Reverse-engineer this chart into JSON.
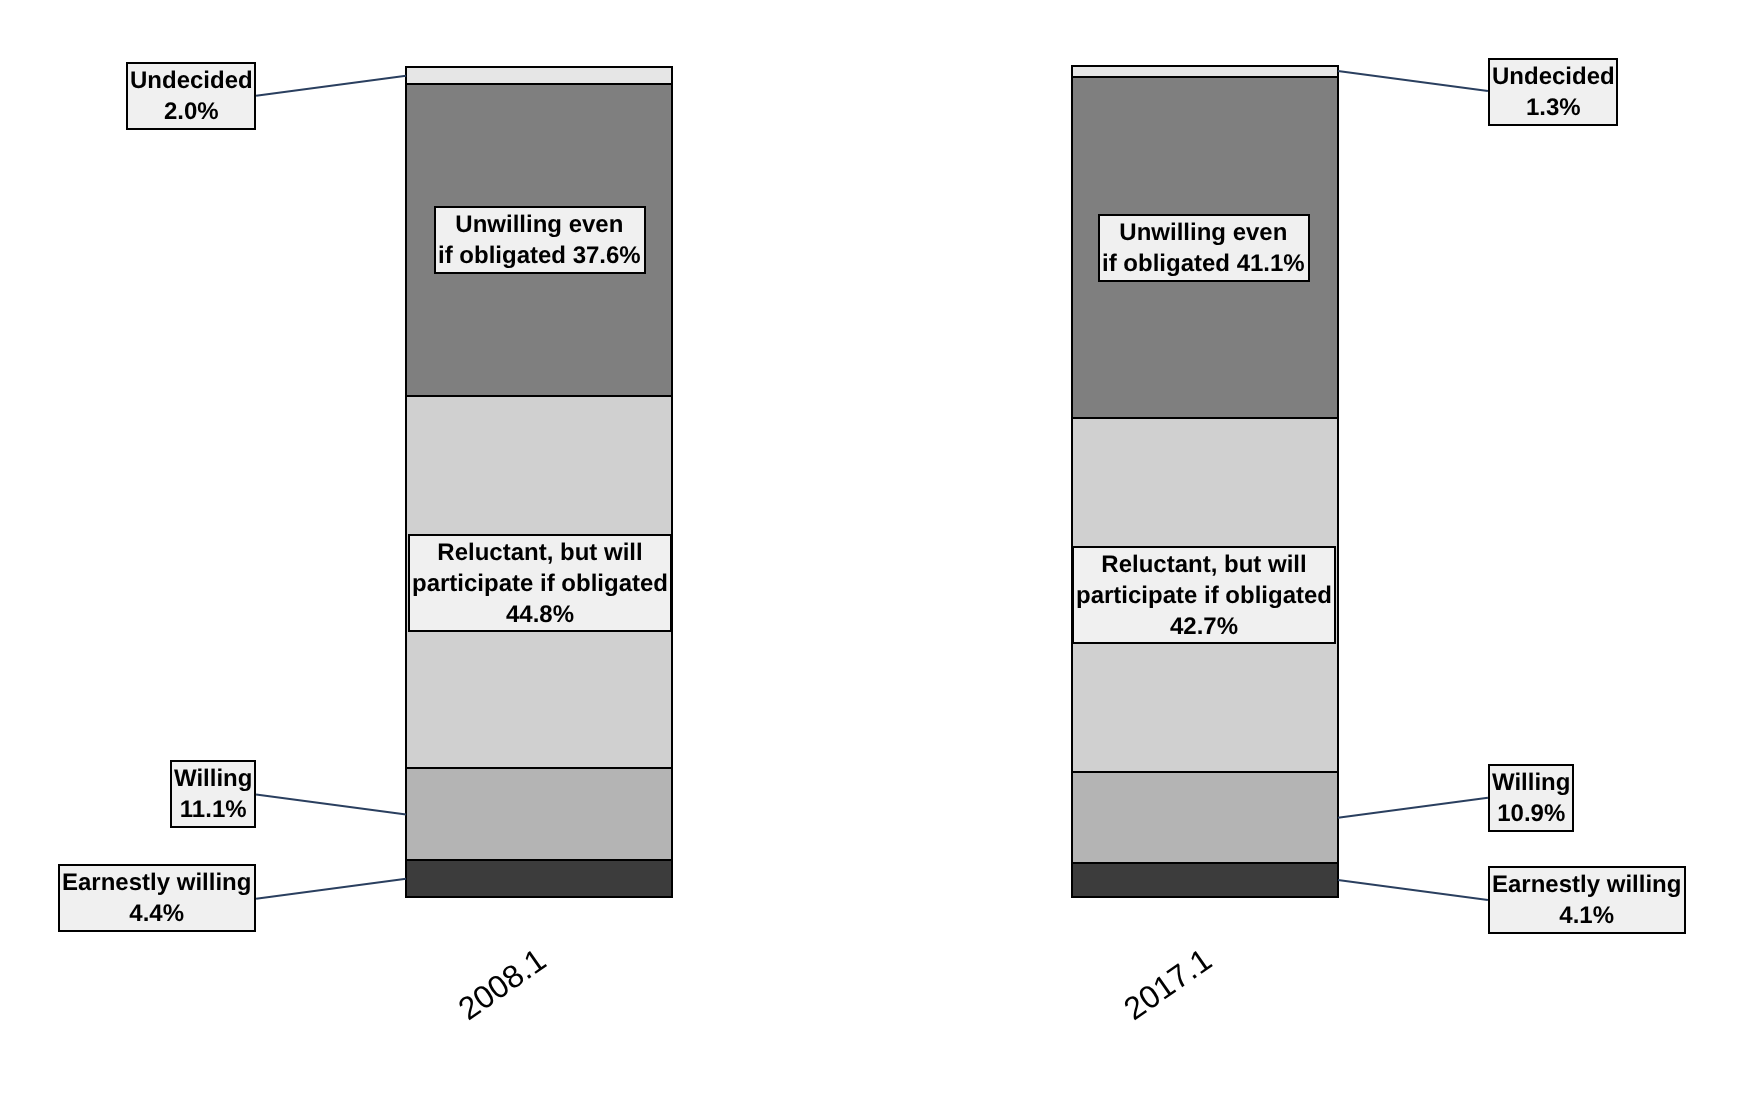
{
  "chart_data": {
    "type": "bar",
    "stacked": true,
    "categories": [
      "2008.1",
      "2017.1"
    ],
    "tick_labels": "x",
    "series": [
      {
        "color": "#3c3c3c",
        "values": [
          4.4,
          4.1
        ],
        "value_labels": [
          "Earnestly willing\n4.4%",
          "Earnestly willing\n4.1%"
        ]
      },
      {
        "color": "#b4b4b4",
        "values": [
          11.1,
          10.9
        ],
        "value_labels": [
          "Willing\n11.1%",
          "Willing\n10.9%"
        ]
      },
      {
        "color": "#d0d0d0",
        "values": [
          44.8,
          42.7
        ],
        "value_labels": [
          "Reluctant, but will\nparticipate if obligated\n44.8%",
          "Reluctant, but will\nparticipate if obligated\n42.7%"
        ]
      },
      {
        "color": "#7f7f7f",
        "values": [
          37.6,
          41.1
        ],
        "value_labels": [
          "Unwilling even\nif obligated 37.6%",
          "Unwilling even\nif obligated 41.1%"
        ]
      },
      {
        "color": "#e6e6e6",
        "values": [
          2.0,
          1.3
        ],
        "value_labels": [
          "Undecided\n2.0%",
          "Undecided\n1.3%"
        ]
      }
    ]
  }
}
